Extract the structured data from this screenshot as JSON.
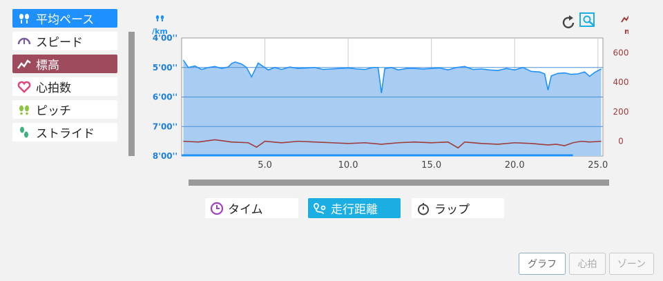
{
  "metrics": [
    {
      "label": "平均ペース",
      "icon": "footprints-icon",
      "state": "active-blue"
    },
    {
      "label": "スピード",
      "icon": "speedometer-icon",
      "state": ""
    },
    {
      "label": "標高",
      "icon": "elevation-icon",
      "state": "active-red"
    },
    {
      "label": "心拍数",
      "icon": "heart-icon",
      "state": ""
    },
    {
      "label": "ピッチ",
      "icon": "green-footprints-icon",
      "state": ""
    },
    {
      "label": "ストライド",
      "icon": "stride-icon",
      "state": ""
    }
  ],
  "toolbar": {
    "reset_icon": "reset-icon",
    "zoom_icon": "zoom-icon"
  },
  "chart_data": {
    "type": "line",
    "x_range": [
      0,
      25.3
    ],
    "x_ticks": [
      "5.0",
      "10.0",
      "15.0",
      "20.0",
      "25.0"
    ],
    "x_tick_values": [
      5,
      10,
      15,
      20,
      25
    ],
    "left_axis": {
      "unit": "/km",
      "ticks": [
        "4'00''",
        "5'00''",
        "6'00''",
        "7'00''",
        "8'00''"
      ],
      "tick_values_sec": [
        240,
        300,
        360,
        420,
        480
      ]
    },
    "right_axis": {
      "unit": "m",
      "ticks": [
        "600",
        "400",
        "200",
        "0"
      ],
      "tick_values": [
        600,
        400,
        200,
        0
      ],
      "range": [
        -100,
        700
      ]
    },
    "series": [
      {
        "axis": "left",
        "color": "#1e90ff",
        "x": [
          0.1,
          0.4,
          0.8,
          1.2,
          1.6,
          2.0,
          2.4,
          2.8,
          3.0,
          3.2,
          3.6,
          3.9,
          4.2,
          4.6,
          4.9,
          5.2,
          5.6,
          6.0,
          6.5,
          7.0,
          7.5,
          8.0,
          8.5,
          9.0,
          9.5,
          10.0,
          10.5,
          11.0,
          11.5,
          11.8,
          12.0,
          12.2,
          12.6,
          13.0,
          13.5,
          14.0,
          14.5,
          15.0,
          15.5,
          16.0,
          16.5,
          17.0,
          17.5,
          18.0,
          18.5,
          19.0,
          19.5,
          20.0,
          20.5,
          21.0,
          21.5,
          21.8,
          22.0,
          22.2,
          22.6,
          23.0,
          23.4,
          23.8,
          24.2,
          24.5,
          24.8,
          25.2
        ],
        "y": [
          285,
          300,
          297,
          304,
          300,
          298,
          302,
          299,
          292,
          289,
          293,
          300,
          319,
          291,
          298,
          305,
          300,
          304,
          299,
          302,
          301,
          300,
          304,
          303,
          302,
          301,
          303,
          304,
          300,
          300,
          352,
          302,
          300,
          305,
          302,
          302,
          303,
          302,
          301,
          305,
          300,
          298,
          304,
          303,
          305,
          306,
          302,
          305,
          300,
          308,
          309,
          313,
          346,
          317,
          312,
          311,
          314,
          313,
          309,
          318,
          310,
          303
        ],
        "ylim_sec": [
          240,
          480
        ]
      },
      {
        "axis": "right",
        "color": "#9e3a3a",
        "x": [
          0.1,
          1.0,
          2.0,
          3.0,
          4.0,
          4.5,
          5.0,
          6.0,
          7.0,
          8.0,
          9.0,
          10.0,
          11.0,
          12.0,
          13.0,
          14.0,
          15.0,
          16.0,
          16.6,
          17.0,
          18.0,
          19.0,
          20.0,
          21.0,
          22.0,
          22.5,
          23.0,
          23.5,
          24.0,
          24.5,
          25.2
        ],
        "y": [
          0,
          -5,
          10,
          -5,
          -10,
          -40,
          0,
          -10,
          0,
          -5,
          -10,
          -15,
          -10,
          -20,
          -10,
          -5,
          -10,
          -5,
          -45,
          -5,
          -15,
          -20,
          -10,
          -15,
          -25,
          -20,
          -30,
          -10,
          0,
          -5,
          0
        ],
        "ylim": [
          -100,
          700
        ]
      }
    ]
  },
  "x_modes": [
    {
      "label": "タイム",
      "icon": "clock-icon",
      "active": false
    },
    {
      "label": "走行距離",
      "icon": "route-icon",
      "active": true
    },
    {
      "label": "ラップ",
      "icon": "stopwatch-icon",
      "active": false
    }
  ],
  "tabs": [
    {
      "label": "グラフ",
      "active": true
    },
    {
      "label": "心拍",
      "active": false
    },
    {
      "label": "ゾーン",
      "active": false
    }
  ]
}
